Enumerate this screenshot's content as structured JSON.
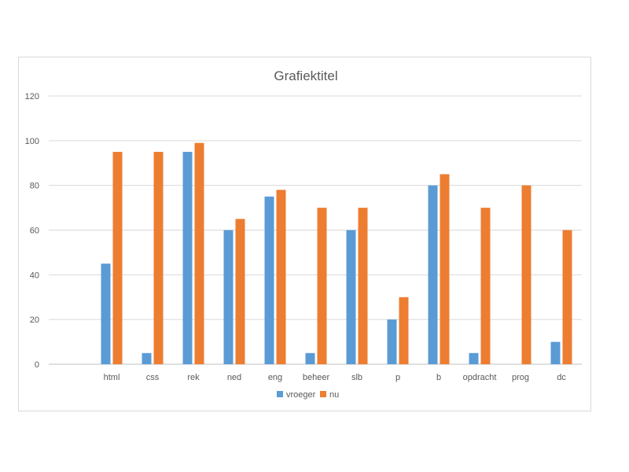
{
  "chart_data": {
    "type": "bar",
    "title": "Grafiektitel",
    "xlabel": "",
    "ylabel": "",
    "ylim": [
      0,
      120
    ],
    "yticks": [
      0,
      20,
      40,
      60,
      80,
      100,
      120
    ],
    "grid": true,
    "legend_position": "bottom",
    "categories": [
      "html",
      "css",
      "rek",
      "ned",
      "eng",
      "beheer",
      "slb",
      "p",
      "b",
      "opdracht",
      "prog",
      "dc"
    ],
    "series": [
      {
        "name": "vroeger",
        "color": "#5b9bd5",
        "values": [
          45,
          5,
          95,
          60,
          75,
          5,
          60,
          20,
          80,
          5,
          0,
          10
        ]
      },
      {
        "name": "nu",
        "color": "#ed7d31",
        "values": [
          95,
          95,
          99,
          65,
          78,
          70,
          70,
          30,
          85,
          70,
          80,
          60
        ]
      }
    ]
  }
}
